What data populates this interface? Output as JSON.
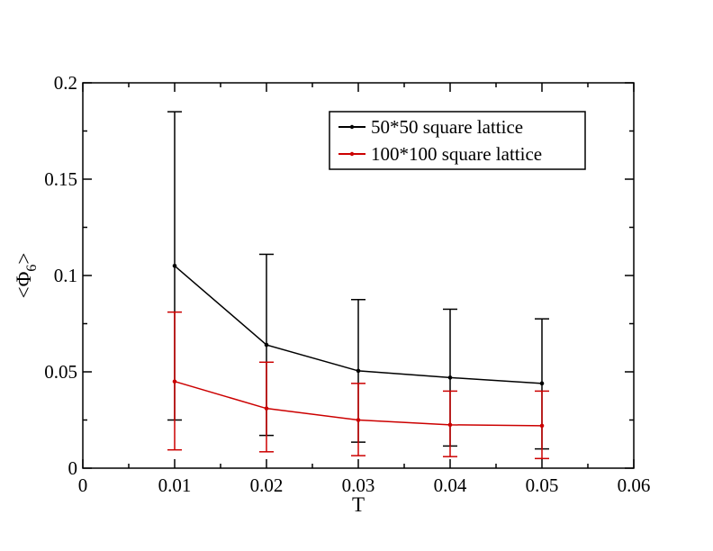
{
  "chart_data": {
    "type": "line",
    "xlabel": "T",
    "ylabel": "<Φ6>",
    "xlim": [
      0,
      0.06
    ],
    "ylim": [
      0,
      0.2
    ],
    "x_ticks": [
      0,
      0.01,
      0.02,
      0.03,
      0.04,
      0.05,
      0.06
    ],
    "x_tick_labels": [
      "0",
      "0.01",
      "0.02",
      "0.03",
      "0.04",
      "0.05",
      "0.06"
    ],
    "y_ticks": [
      0,
      0.05,
      0.1,
      0.15,
      0.2
    ],
    "y_tick_labels": [
      "0",
      "0.05",
      "0.1",
      "0.15",
      "0.2"
    ],
    "grid": false,
    "legend_position": "top-right",
    "x": [
      0.01,
      0.02,
      0.03,
      0.04,
      0.05
    ],
    "series": [
      {
        "name": "50*50 square lattice",
        "color": "#000000",
        "values": [
          0.105,
          0.064,
          0.0505,
          0.047,
          0.044
        ],
        "err_low": [
          0.025,
          0.017,
          0.0135,
          0.0115,
          0.01
        ],
        "err_high": [
          0.185,
          0.111,
          0.0875,
          0.0825,
          0.0775
        ]
      },
      {
        "name": "100*100 square lattice",
        "color": "#cc0000",
        "values": [
          0.045,
          0.031,
          0.025,
          0.0225,
          0.022
        ],
        "err_low": [
          0.0095,
          0.0085,
          0.0065,
          0.006,
          0.005
        ],
        "err_high": [
          0.081,
          0.055,
          0.044,
          0.04,
          0.04
        ]
      }
    ]
  }
}
